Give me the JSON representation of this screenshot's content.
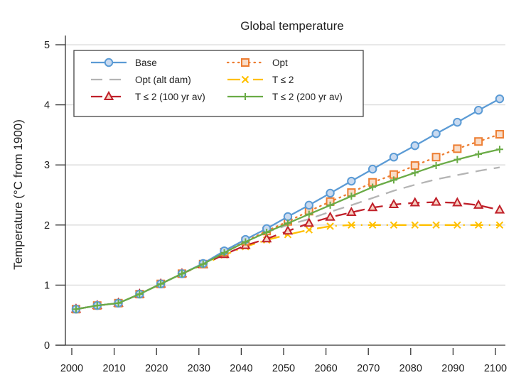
{
  "chart_data": {
    "type": "line",
    "title": "Global temperature",
    "xlabel": "",
    "ylabel": "Temperature (°C from 1900)",
    "xlim": [
      2000,
      2100
    ],
    "ylim": [
      0,
      5
    ],
    "grid": "horizontal",
    "legend_position": "top-left",
    "x_ticks": [
      2000,
      2010,
      2020,
      2030,
      2040,
      2050,
      2060,
      2070,
      2080,
      2090,
      2100
    ],
    "x_tick_labels": [
      "2000",
      "2010",
      "2020",
      "2030",
      "2040",
      "2050",
      "2060",
      "2070",
      "2080",
      "2090",
      "2100"
    ],
    "y_ticks": [
      0,
      1,
      2,
      3,
      4,
      5
    ],
    "y_tick_labels": [
      "0",
      "1",
      "2",
      "3",
      "4",
      "5"
    ],
    "x": [
      2001,
      2006,
      2011,
      2016,
      2021,
      2026,
      2031,
      2036,
      2041,
      2046,
      2051,
      2056,
      2061,
      2066,
      2071,
      2076,
      2081,
      2086,
      2091,
      2096,
      2101
    ],
    "series": [
      {
        "name": "Base",
        "legend_label": "Base",
        "color": "#5b9bd5",
        "line_style": "solid",
        "marker": "circle",
        "values": [
          0.6,
          0.66,
          0.7,
          0.85,
          1.02,
          1.19,
          1.36,
          1.57,
          1.76,
          1.94,
          2.14,
          2.33,
          2.53,
          2.73,
          2.93,
          3.13,
          3.32,
          3.52,
          3.71,
          3.91,
          4.1
        ]
      },
      {
        "name": "Opt",
        "legend_label": "Opt",
        "color": "#ed7d31",
        "line_style": "dotted",
        "marker": "square",
        "values": [
          0.6,
          0.66,
          0.7,
          0.85,
          1.02,
          1.19,
          1.35,
          1.55,
          1.73,
          1.9,
          2.06,
          2.23,
          2.39,
          2.54,
          2.71,
          2.84,
          2.99,
          3.13,
          3.27,
          3.39,
          3.51
        ]
      },
      {
        "name": "Opt (alt dam)",
        "legend_label": "Opt (alt dam)",
        "color": "#b4b4b4",
        "line_style": "dashed",
        "marker": "none",
        "values": [
          0.6,
          0.66,
          0.7,
          0.85,
          1.02,
          1.19,
          1.35,
          1.54,
          1.72,
          1.88,
          2.0,
          2.1,
          2.22,
          2.33,
          2.45,
          2.57,
          2.67,
          2.76,
          2.83,
          2.9,
          2.96
        ]
      },
      {
        "name": "T ≤ 2",
        "legend_label": "T ≤ 2",
        "color": "#ffc000",
        "line_style": "dashdot",
        "marker": "x",
        "values": [
          0.6,
          0.66,
          0.7,
          0.85,
          1.02,
          1.19,
          1.34,
          1.5,
          1.64,
          1.75,
          1.84,
          1.92,
          1.98,
          2.0,
          2.0,
          2.0,
          2.0,
          2.0,
          2.0,
          2.0,
          2.0
        ]
      },
      {
        "name": "T ≤ 2 (100 yr av)",
        "legend_label": "T ≤ 2 (100 yr av)",
        "color": "#c0202a",
        "line_style": "dashed",
        "marker": "triangle",
        "values": [
          0.6,
          0.66,
          0.7,
          0.85,
          1.02,
          1.19,
          1.34,
          1.51,
          1.66,
          1.77,
          1.9,
          2.03,
          2.13,
          2.21,
          2.29,
          2.34,
          2.37,
          2.38,
          2.37,
          2.33,
          2.25
        ]
      },
      {
        "name": "T ≤ 2 (200 yr av)",
        "legend_label": "T ≤ 2 (200 yr av)",
        "color": "#6aab46",
        "line_style": "solid",
        "marker": "plus",
        "values": [
          0.6,
          0.66,
          0.7,
          0.85,
          1.02,
          1.19,
          1.35,
          1.54,
          1.72,
          1.88,
          2.03,
          2.18,
          2.33,
          2.48,
          2.63,
          2.75,
          2.87,
          2.99,
          3.09,
          3.18,
          3.26
        ]
      }
    ]
  },
  "colors": {
    "axis": "#333333",
    "grid": "#d9d9d9",
    "text": "#222222"
  }
}
